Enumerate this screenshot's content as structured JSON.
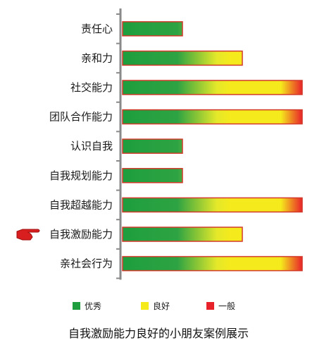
{
  "chart_data": {
    "type": "bar",
    "orientation": "horizontal",
    "title": "",
    "caption": "自我激励能力良好的小朋友案例展示",
    "categories": [
      "责任心",
      "亲和力",
      "社交能力",
      "团队合作能力",
      "认识自我",
      "自我规划能力",
      "自我超越能力",
      "自我激励能力",
      "亲社会行为"
    ],
    "values": [
      1,
      2,
      3,
      3,
      1,
      1,
      3,
      2,
      3
    ],
    "xlim": [
      0,
      3
    ],
    "grid": false,
    "legend_position": "bottom",
    "legend": [
      {
        "label": "优秀",
        "color": "#1e9e3e"
      },
      {
        "label": "良好",
        "color": "#f5ea1c"
      },
      {
        "label": "一般",
        "color": "#e8222a"
      }
    ],
    "highlighted_category": "自我激励能力",
    "highlight_icon": "pointing-hand-icon"
  }
}
